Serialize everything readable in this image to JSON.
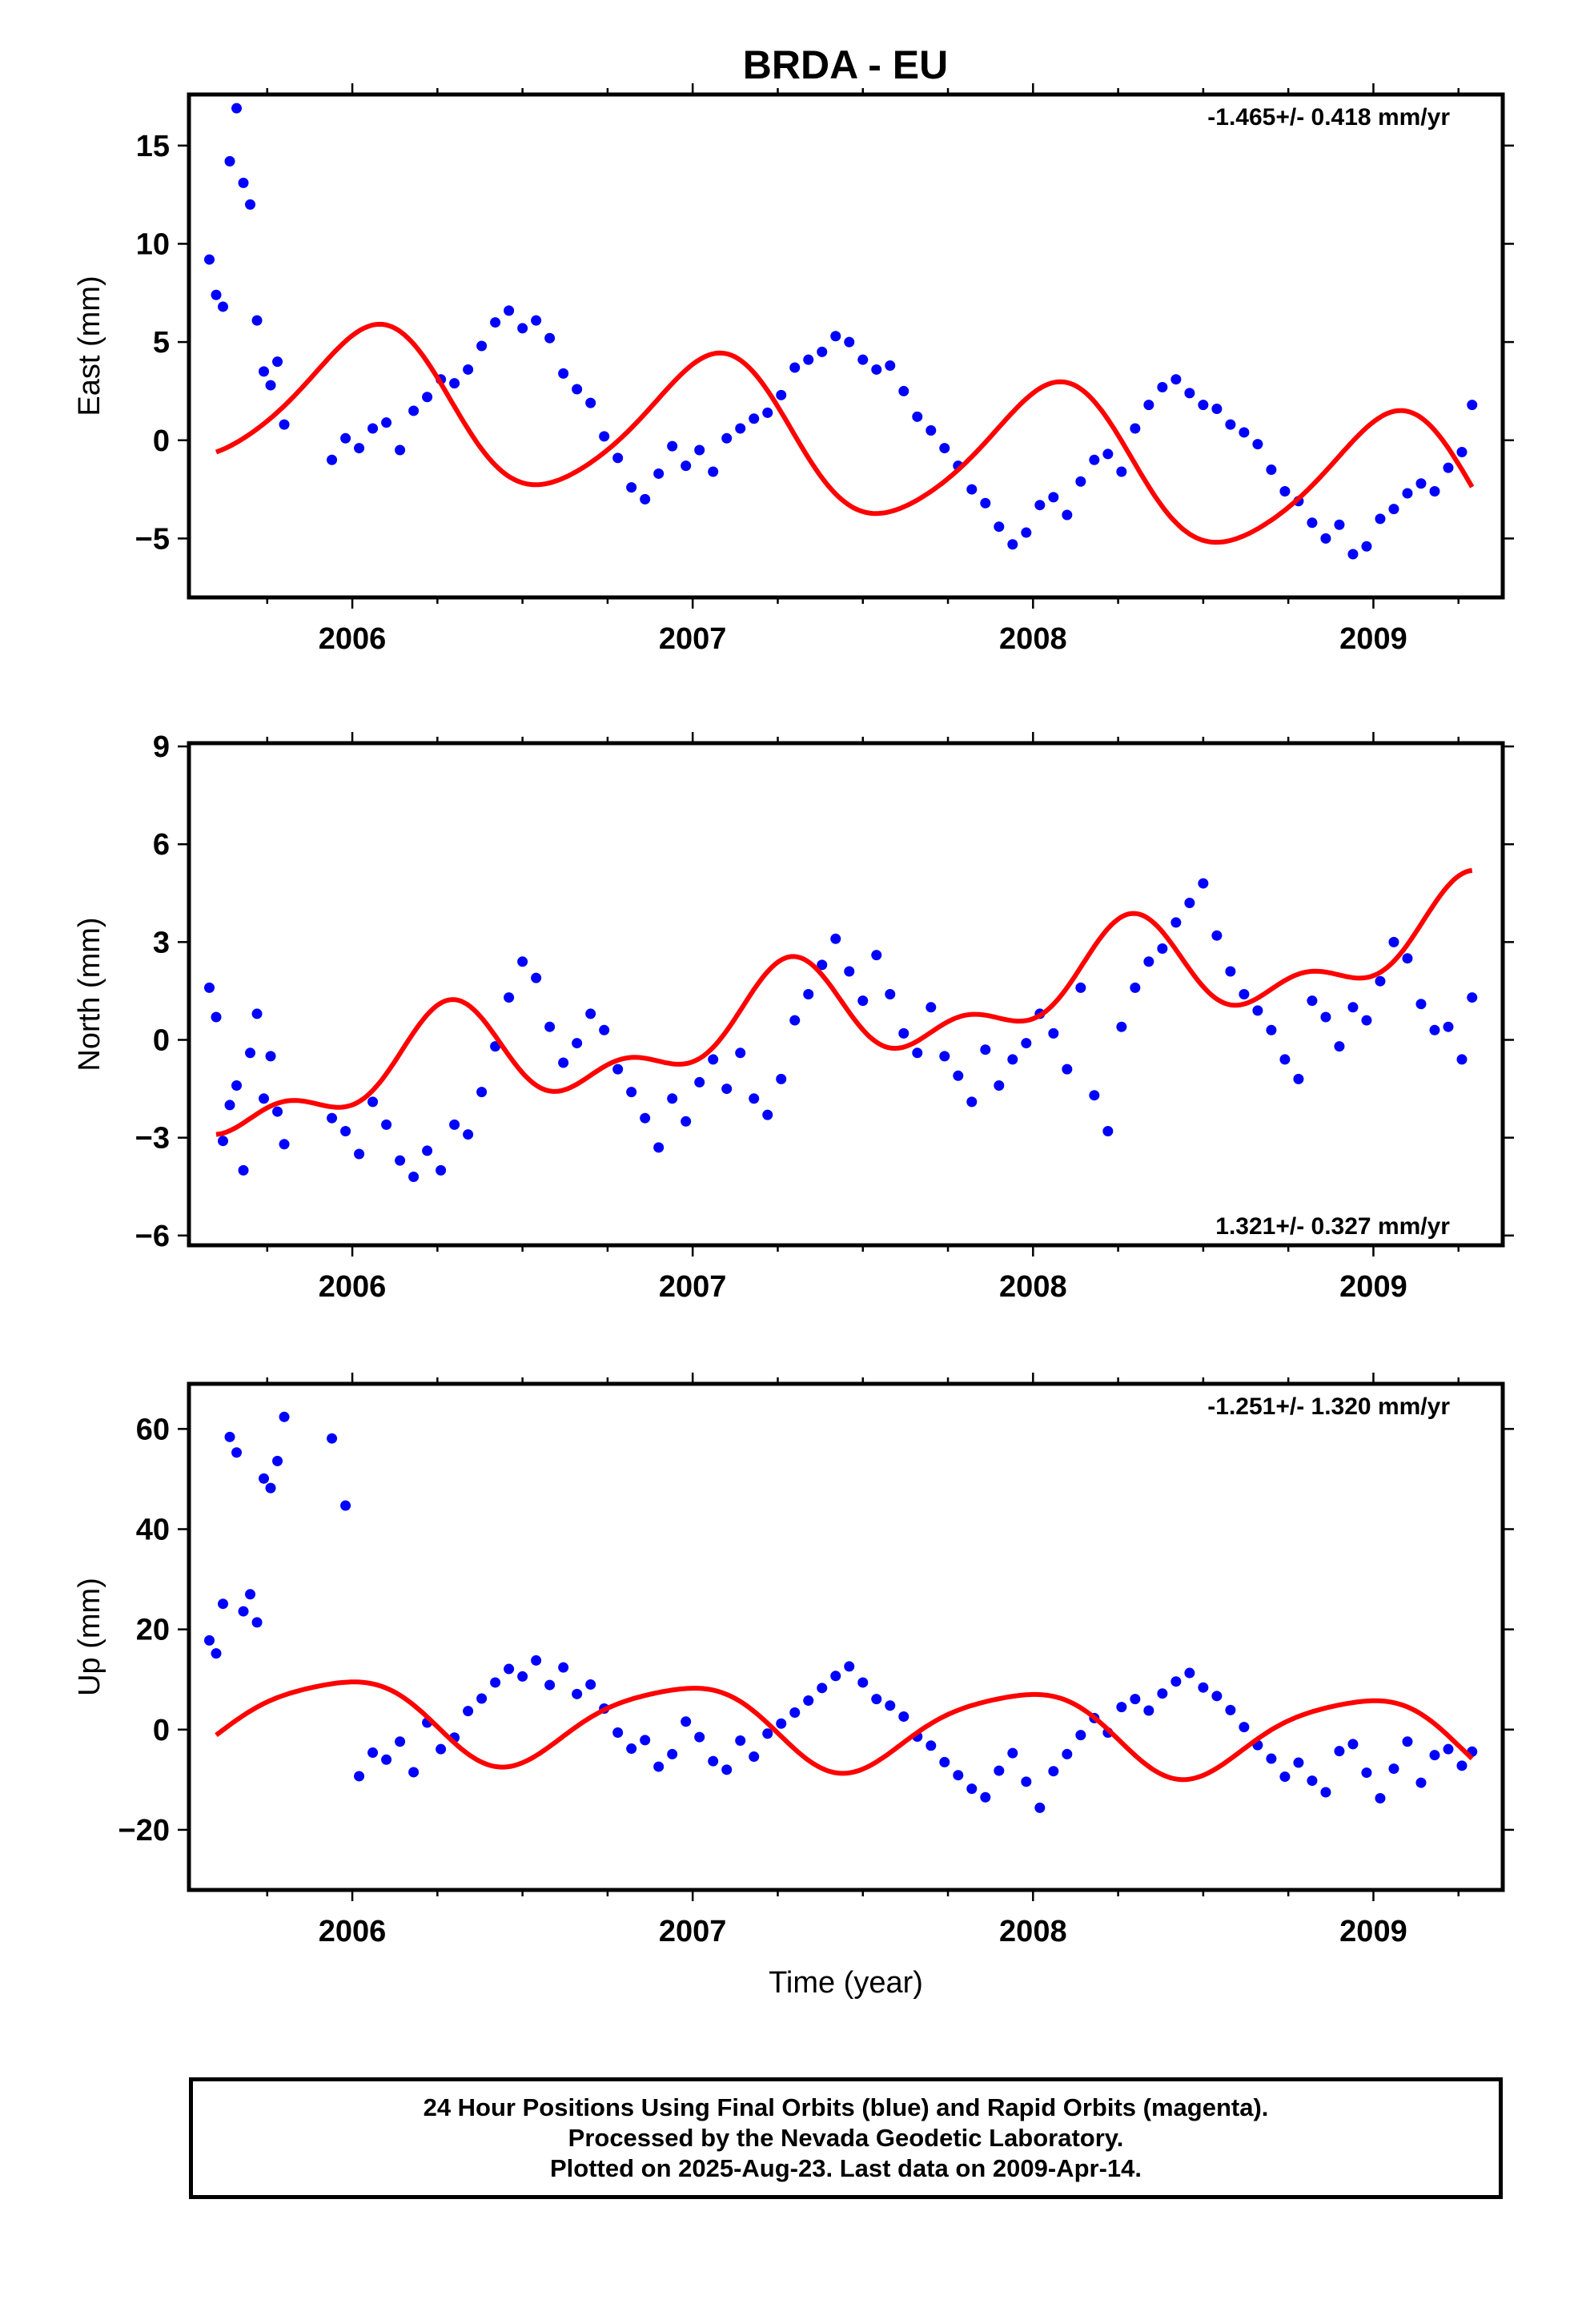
{
  "title": "BRDA - EU",
  "footer": {
    "line1": "24 Hour Positions Using Final Orbits (blue) and Rapid Orbits (magenta).",
    "line2": "Processed by the Nevada Geodetic Laboratory.",
    "line3": "Plotted on 2025-Aug-23. Last data on 2009-Apr-14."
  },
  "colors": {
    "points": "#0000ff",
    "fit": "#ff0000",
    "axes": "#000000"
  },
  "chart_data": [
    {
      "type": "scatter",
      "title": "BRDA - EU",
      "xlabel": "",
      "ylabel": "East (mm)",
      "xlim": [
        2005.52,
        2009.38
      ],
      "ylim": [
        -8,
        17.6
      ],
      "yticks": [
        -5,
        0,
        5,
        10,
        15
      ],
      "xticks": [
        2006,
        2007,
        2008,
        2009
      ],
      "grid": false,
      "rate_label": "-1.465+/- 0.418 mm/yr",
      "rate_position": "top-right",
      "fit": {
        "offset": 2.6,
        "trend": -1.465,
        "ref_year": 2005.6,
        "cos1": -3.6,
        "sin1": 0.8,
        "cos2": 0.4,
        "sin2": 0.2
      },
      "series": [
        {
          "name": "Final Orbits",
          "color": "#0000ff",
          "x": [
            2005.58,
            2005.6,
            2005.62,
            2005.64,
            2005.66,
            2005.68,
            2005.7,
            2005.72,
            2005.74,
            2005.76,
            2005.78,
            2005.8,
            2005.94,
            2005.98,
            2006.02,
            2006.06,
            2006.1,
            2006.14,
            2006.18,
            2006.22,
            2006.26,
            2006.3,
            2006.34,
            2006.38,
            2006.42,
            2006.46,
            2006.5,
            2006.54,
            2006.58,
            2006.62,
            2006.66,
            2006.7,
            2006.74,
            2006.78,
            2006.82,
            2006.86,
            2006.9,
            2006.94,
            2006.98,
            2007.02,
            2007.06,
            2007.1,
            2007.14,
            2007.18,
            2007.22,
            2007.26,
            2007.3,
            2007.34,
            2007.38,
            2007.42,
            2007.46,
            2007.5,
            2007.54,
            2007.58,
            2007.62,
            2007.66,
            2007.7,
            2007.74,
            2007.78,
            2007.82,
            2007.86,
            2007.9,
            2007.94,
            2007.98,
            2008.02,
            2008.06,
            2008.1,
            2008.14,
            2008.18,
            2008.22,
            2008.26,
            2008.3,
            2008.34,
            2008.38,
            2008.42,
            2008.46,
            2008.5,
            2008.54,
            2008.58,
            2008.62,
            2008.66,
            2008.7,
            2008.74,
            2008.78,
            2008.82,
            2008.86,
            2008.9,
            2008.94,
            2008.98,
            2009.02,
            2009.06,
            2009.1,
            2009.14,
            2009.18,
            2009.22,
            2009.26,
            2009.29
          ],
          "y": [
            9.2,
            7.4,
            6.8,
            14.2,
            16.9,
            13.1,
            12.0,
            6.1,
            3.5,
            2.8,
            4.0,
            0.8,
            -1.0,
            0.1,
            -0.4,
            0.6,
            0.9,
            -0.5,
            1.5,
            2.2,
            3.1,
            2.9,
            3.6,
            4.8,
            6.0,
            6.6,
            5.7,
            6.1,
            5.2,
            3.4,
            2.6,
            1.9,
            0.2,
            -0.9,
            -2.4,
            -3.0,
            -1.7,
            -0.3,
            -1.3,
            -0.5,
            -1.6,
            0.1,
            0.6,
            1.1,
            1.4,
            2.3,
            3.7,
            4.1,
            4.5,
            5.3,
            5.0,
            4.1,
            3.6,
            3.8,
            2.5,
            1.2,
            0.5,
            -0.4,
            -1.3,
            -2.5,
            -3.2,
            -4.4,
            -5.3,
            -4.7,
            -3.3,
            -2.9,
            -3.8,
            -2.1,
            -1.0,
            -0.7,
            -1.6,
            0.6,
            1.8,
            2.7,
            3.1,
            2.4,
            1.8,
            1.6,
            0.8,
            0.4,
            -0.2,
            -1.5,
            -2.6,
            -3.1,
            -4.2,
            -5.0,
            -4.3,
            -5.8,
            -5.4,
            -4.0,
            -3.5,
            -2.7,
            -2.2,
            -2.6,
            -1.4,
            -0.6,
            1.8
          ]
        }
      ]
    },
    {
      "type": "scatter",
      "title": "",
      "xlabel": "",
      "ylabel": "North (mm)",
      "xlim": [
        2005.52,
        2009.38
      ],
      "ylim": [
        -6.3,
        9.1
      ],
      "yticks": [
        -6,
        -3,
        0,
        3,
        6,
        9
      ],
      "xticks": [
        2006,
        2007,
        2008,
        2009
      ],
      "grid": false,
      "rate_label": "1.321+/- 0.327 mm/yr",
      "rate_position": "bottom-right",
      "fit": {
        "offset": -1.7,
        "trend": 1.321,
        "ref_year": 2005.6,
        "cos1": -0.6,
        "sin1": -1.1,
        "cos2": -0.6,
        "sin2": 0.5
      },
      "series": [
        {
          "name": "Final Orbits",
          "color": "#0000ff",
          "x": [
            2005.58,
            2005.6,
            2005.62,
            2005.64,
            2005.66,
            2005.68,
            2005.7,
            2005.72,
            2005.74,
            2005.76,
            2005.78,
            2005.8,
            2005.94,
            2005.98,
            2006.02,
            2006.06,
            2006.1,
            2006.14,
            2006.18,
            2006.22,
            2006.26,
            2006.3,
            2006.34,
            2006.38,
            2006.42,
            2006.46,
            2006.5,
            2006.54,
            2006.58,
            2006.62,
            2006.66,
            2006.7,
            2006.74,
            2006.78,
            2006.82,
            2006.86,
            2006.9,
            2006.94,
            2006.98,
            2007.02,
            2007.06,
            2007.1,
            2007.14,
            2007.18,
            2007.22,
            2007.26,
            2007.3,
            2007.34,
            2007.38,
            2007.42,
            2007.46,
            2007.5,
            2007.54,
            2007.58,
            2007.62,
            2007.66,
            2007.7,
            2007.74,
            2007.78,
            2007.82,
            2007.86,
            2007.9,
            2007.94,
            2007.98,
            2008.02,
            2008.06,
            2008.1,
            2008.14,
            2008.18,
            2008.22,
            2008.26,
            2008.3,
            2008.34,
            2008.38,
            2008.42,
            2008.46,
            2008.5,
            2008.54,
            2008.58,
            2008.62,
            2008.66,
            2008.7,
            2008.74,
            2008.78,
            2008.82,
            2008.86,
            2008.9,
            2008.94,
            2008.98,
            2009.02,
            2009.06,
            2009.1,
            2009.14,
            2009.18,
            2009.22,
            2009.26,
            2009.29
          ],
          "y": [
            1.6,
            0.7,
            -3.1,
            -2.0,
            -1.4,
            -4.0,
            -0.4,
            0.8,
            -1.8,
            -0.5,
            -2.2,
            -3.2,
            -2.4,
            -2.8,
            -3.5,
            -1.9,
            -2.6,
            -3.7,
            -4.2,
            -3.4,
            -4.0,
            -2.6,
            -2.9,
            -1.6,
            -0.2,
            1.3,
            2.4,
            1.9,
            0.4,
            -0.7,
            -0.1,
            0.8,
            0.3,
            -0.9,
            -1.6,
            -2.4,
            -3.3,
            -1.8,
            -2.5,
            -1.3,
            -0.6,
            -1.5,
            -0.4,
            -1.8,
            -2.3,
            -1.2,
            0.6,
            1.4,
            2.3,
            3.1,
            2.1,
            1.2,
            2.6,
            1.4,
            0.2,
            -0.4,
            1.0,
            -0.5,
            -1.1,
            -1.9,
            -0.3,
            -1.4,
            -0.6,
            -0.1,
            0.8,
            0.2,
            -0.9,
            1.6,
            -1.7,
            -2.8,
            0.4,
            1.6,
            2.4,
            2.8,
            3.6,
            4.2,
            4.8,
            3.2,
            2.1,
            1.4,
            0.9,
            0.3,
            -0.6,
            -1.2,
            1.2,
            0.7,
            -0.2,
            1.0,
            0.6,
            1.8,
            3.0,
            2.5,
            1.1,
            0.3,
            0.4,
            -0.6,
            1.3
          ]
        }
      ]
    },
    {
      "type": "scatter",
      "title": "",
      "xlabel": "Time (year)",
      "ylabel": "Up (mm)",
      "xlim": [
        2005.52,
        2009.38
      ],
      "ylim": [
        -32,
        69
      ],
      "yticks": [
        -20,
        0,
        20,
        40,
        60
      ],
      "xticks": [
        2006,
        2007,
        2008,
        2009
      ],
      "grid": false,
      "rate_label": "-1.251+/- 1.320 mm/yr",
      "rate_position": "top-right",
      "fit": {
        "offset": 2.9,
        "trend": -1.251,
        "ref_year": 2005.6,
        "cos1": -5.0,
        "sin1": 6.3,
        "cos2": 1.0,
        "sin2": 1.0
      },
      "series": [
        {
          "name": "Final Orbits",
          "color": "#0000ff",
          "x": [
            2005.58,
            2005.6,
            2005.62,
            2005.64,
            2005.66,
            2005.68,
            2005.7,
            2005.72,
            2005.74,
            2005.76,
            2005.78,
            2005.8,
            2005.94,
            2005.98,
            2006.02,
            2006.06,
            2006.1,
            2006.14,
            2006.18,
            2006.22,
            2006.26,
            2006.3,
            2006.34,
            2006.38,
            2006.42,
            2006.46,
            2006.5,
            2006.54,
            2006.58,
            2006.62,
            2006.66,
            2006.7,
            2006.74,
            2006.78,
            2006.82,
            2006.86,
            2006.9,
            2006.94,
            2006.98,
            2007.02,
            2007.06,
            2007.1,
            2007.14,
            2007.18,
            2007.22,
            2007.26,
            2007.3,
            2007.34,
            2007.38,
            2007.42,
            2007.46,
            2007.5,
            2007.54,
            2007.58,
            2007.62,
            2007.66,
            2007.7,
            2007.74,
            2007.78,
            2007.82,
            2007.86,
            2007.9,
            2007.94,
            2007.98,
            2008.02,
            2008.06,
            2008.1,
            2008.14,
            2008.18,
            2008.22,
            2008.26,
            2008.3,
            2008.34,
            2008.38,
            2008.42,
            2008.46,
            2008.5,
            2008.54,
            2008.58,
            2008.62,
            2008.66,
            2008.7,
            2008.74,
            2008.78,
            2008.82,
            2008.86,
            2008.9,
            2008.94,
            2008.98,
            2009.02,
            2009.06,
            2009.1,
            2009.14,
            2009.18,
            2009.22,
            2009.26,
            2009.29
          ],
          "y": [
            17.8,
            15.2,
            25.1,
            58.4,
            55.3,
            23.6,
            27.0,
            21.4,
            50.1,
            48.2,
            53.6,
            62.4,
            58.1,
            44.7,
            -9.3,
            -4.6,
            -6.0,
            -2.4,
            -8.5,
            1.4,
            -3.9,
            -1.6,
            3.7,
            6.2,
            9.4,
            12.1,
            10.6,
            13.8,
            8.9,
            12.4,
            7.1,
            9.0,
            4.2,
            -0.6,
            -3.8,
            -2.1,
            -7.4,
            -4.9,
            1.6,
            -1.5,
            -6.3,
            -8.0,
            -2.2,
            -5.4,
            -0.8,
            1.2,
            3.4,
            5.8,
            8.3,
            10.7,
            12.6,
            9.4,
            6.1,
            4.8,
            2.6,
            -1.4,
            -3.2,
            -6.5,
            -9.1,
            -11.8,
            -13.5,
            -8.2,
            -4.7,
            -10.4,
            -15.6,
            -8.3,
            -4.9,
            -1.1,
            2.3,
            -0.6,
            4.5,
            6.1,
            3.8,
            7.2,
            9.6,
            11.3,
            8.4,
            6.7,
            3.9,
            0.5,
            -3.1,
            -5.8,
            -9.4,
            -6.6,
            -10.2,
            -12.5,
            -4.3,
            -2.9,
            -8.6,
            -13.7,
            -7.8,
            -2.4,
            -10.6,
            -5.1,
            -3.9,
            -7.2,
            -4.4
          ]
        }
      ]
    }
  ]
}
